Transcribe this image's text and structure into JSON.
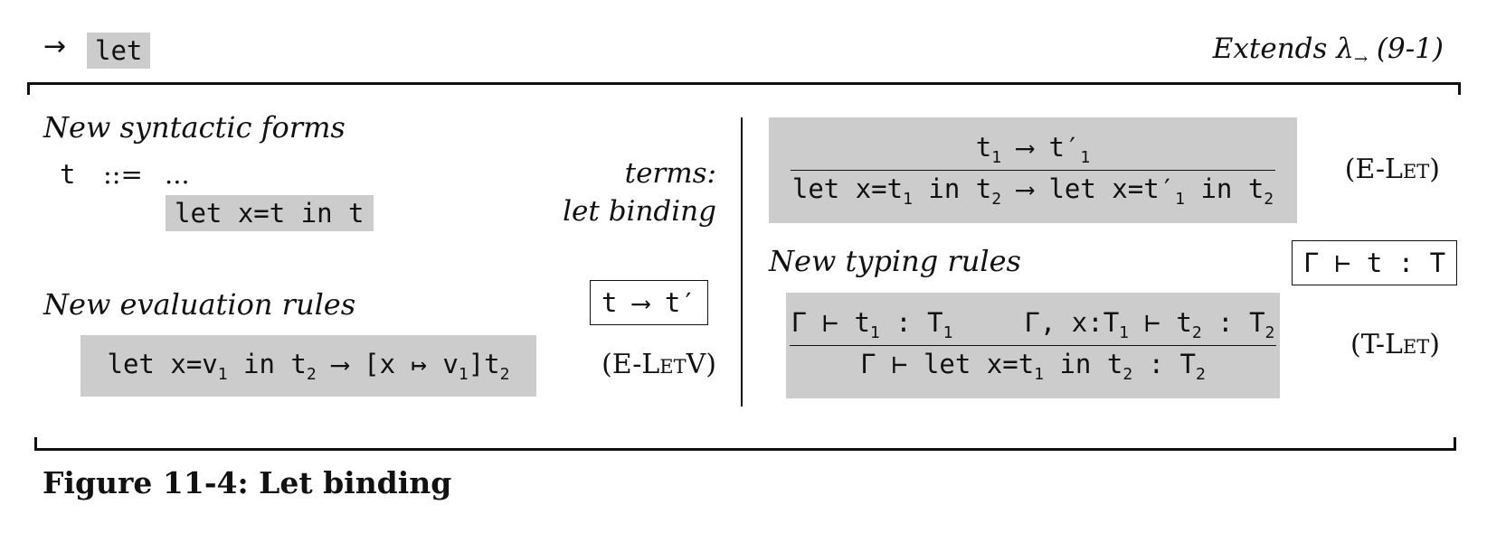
{
  "header": {
    "arrow": "→",
    "system_name": "let",
    "extends_label": "Extends λ",
    "extends_sub": "→",
    "extends_ref": "(9-1)"
  },
  "syntax": {
    "heading": "New syntactic forms",
    "metavar": "t",
    "defines": "::=",
    "ellipsis": "...",
    "category": "terms:",
    "form": "let x=t in t",
    "form_desc": "let binding"
  },
  "evaluation": {
    "heading": "New evaluation rules",
    "judgment": "t ⟶ t′",
    "rules": [
      {
        "name": "(E-LetV)",
        "conclusion_parts": [
          "let x=v",
          "1",
          " in t",
          "2",
          " ⟶ [x ↦ v",
          "1",
          "]t",
          "2"
        ]
      },
      {
        "name": "(E-Let)",
        "premise_parts": [
          "t",
          "1",
          " ⟶ t′",
          "1"
        ],
        "conclusion_parts": [
          "let x=t",
          "1",
          " in t",
          "2",
          " ⟶ let x=t′",
          "1",
          " in t",
          "2"
        ]
      }
    ]
  },
  "typing": {
    "heading": "New typing rules",
    "judgment": "Γ ⊢ t : T",
    "rules": [
      {
        "name": "(T-Let)",
        "premise1_parts": [
          "Γ ⊢ t",
          "1",
          " : T",
          "1"
        ],
        "premise2_parts": [
          "Γ, x:T",
          "1",
          " ⊢ t",
          "2",
          " : T",
          "2"
        ],
        "conclusion_parts": [
          "Γ ⊢ let x=t",
          "1",
          " in t",
          "2",
          " : T",
          "2"
        ]
      }
    ]
  },
  "caption": "Figure 11-4: Let binding"
}
